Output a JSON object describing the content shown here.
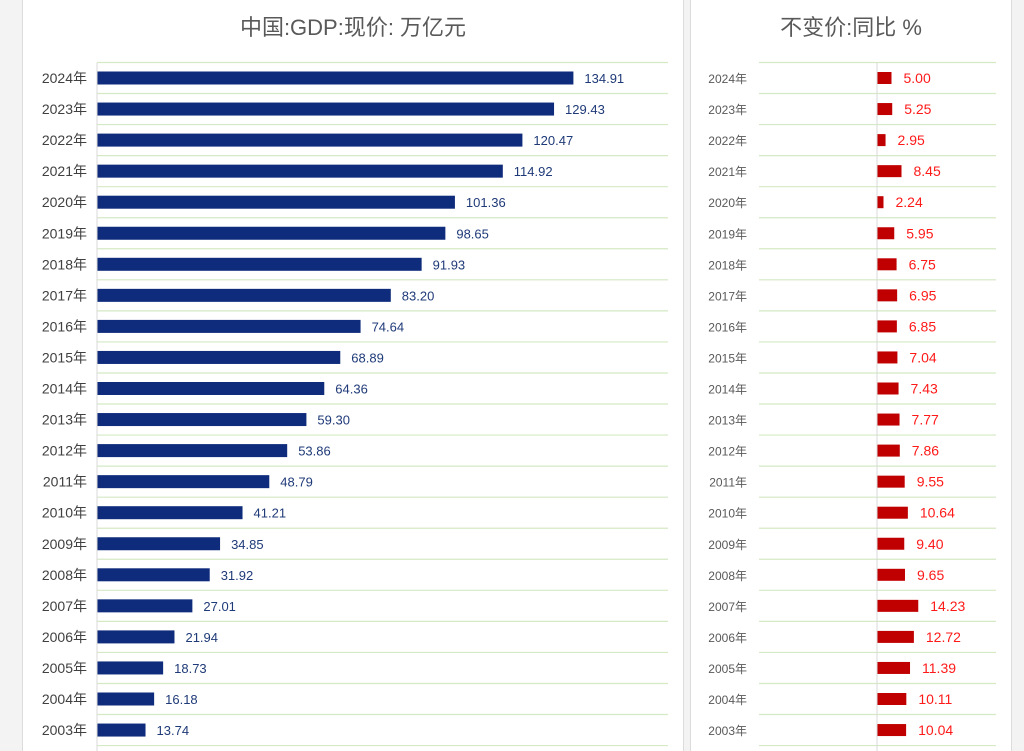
{
  "colors": {
    "gdp_bar": "#0f2b7c",
    "gdp_label": "#1f3a78",
    "growth_bar": "#c00000",
    "growth_label": "#ff1a1a",
    "gridline": "#d4e9c4",
    "axis_label": "#404040"
  },
  "chart_data": [
    {
      "type": "bar",
      "orientation": "horizontal",
      "title": "中国:GDP:现价: 万亿元",
      "categories": [
        "2024年",
        "2023年",
        "2022年",
        "2021年",
        "2020年",
        "2019年",
        "2018年",
        "2017年",
        "2016年",
        "2015年",
        "2014年",
        "2013年",
        "2012年",
        "2011年",
        "2010年",
        "2009年",
        "2008年",
        "2007年",
        "2006年",
        "2005年",
        "2004年",
        "2003年"
      ],
      "values": [
        134.91,
        129.43,
        120.47,
        114.92,
        101.36,
        98.65,
        91.93,
        83.2,
        74.64,
        68.89,
        64.36,
        59.3,
        53.86,
        48.79,
        41.21,
        34.85,
        31.92,
        27.01,
        21.94,
        18.73,
        16.18,
        13.74
      ],
      "value_labels": [
        "134.91",
        "129.43",
        "120.47",
        "114.92",
        "101.36",
        "98.65",
        "91.93",
        "83.20",
        "74.64",
        "68.89",
        "64.36",
        "59.30",
        "53.86",
        "48.79",
        "41.21",
        "34.85",
        "31.92",
        "27.01",
        "21.94",
        "18.73",
        "16.18",
        "13.74"
      ],
      "xlim": [
        0,
        160
      ],
      "grid": true,
      "legend": "none"
    },
    {
      "type": "bar",
      "orientation": "horizontal",
      "title": "不变价:同比 %",
      "categories": [
        "2024年",
        "2023年",
        "2022年",
        "2021年",
        "2020年",
        "2019年",
        "2018年",
        "2017年",
        "2016年",
        "2015年",
        "2014年",
        "2013年",
        "2012年",
        "2011年",
        "2010年",
        "2009年",
        "2008年",
        "2007年",
        "2006年",
        "2005年",
        "2004年",
        "2003年"
      ],
      "values": [
        5.0,
        5.25,
        2.95,
        8.45,
        2.24,
        5.95,
        6.75,
        6.95,
        6.85,
        7.04,
        7.43,
        7.77,
        7.86,
        9.55,
        10.64,
        9.4,
        9.65,
        14.23,
        12.72,
        11.39,
        10.11,
        10.04
      ],
      "value_labels": [
        "5.00",
        "5.25",
        "2.95",
        "8.45",
        "2.24",
        "5.95",
        "6.75",
        "6.95",
        "6.85",
        "7.04",
        "7.43",
        "7.77",
        "7.86",
        "9.55",
        "10.64",
        "9.40",
        "9.65",
        "14.23",
        "12.72",
        "11.39",
        "10.11",
        "10.04"
      ],
      "xlim": [
        0,
        40
      ],
      "grid": true,
      "legend": "none"
    }
  ]
}
